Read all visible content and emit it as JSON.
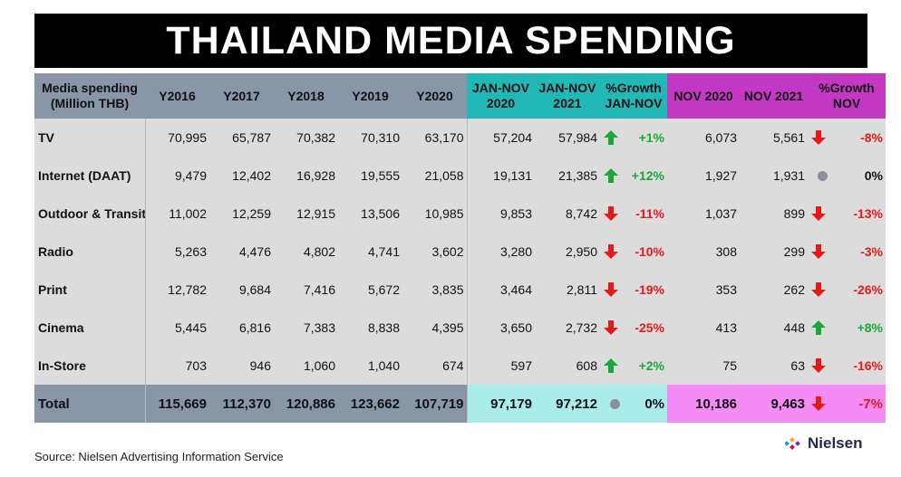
{
  "title": "THAILAND MEDIA SPENDING",
  "header": {
    "label": [
      "Media spending",
      "(Million THB)"
    ],
    "years": [
      "Y2016",
      "Y2017",
      "Y2018",
      "Y2019",
      "Y2020"
    ],
    "jan_nov_2020": [
      "JAN-NOV",
      "2020"
    ],
    "jan_nov_2021": [
      "JAN-NOV",
      "2021"
    ],
    "growth_jan_nov": [
      "%Growth",
      "JAN-NOV"
    ],
    "nov_2020": "NOV 2020",
    "nov_2021": "NOV 2021",
    "growth_nov": [
      "%Growth",
      "NOV"
    ]
  },
  "colors": {
    "title_bg": "#000000",
    "header_gray": "#8996a8",
    "header_teal": "#21b8b5",
    "header_magenta": "#c238c2",
    "row_bg": "#dcdcdc",
    "total_teal": "#aaecec",
    "total_magenta": "#f58cf5",
    "up": "#1aa73a",
    "down": "#e31a1a"
  },
  "rows": [
    {
      "label": "TV",
      "y2016": "70,995",
      "y2017": "65,787",
      "y2018": "70,382",
      "y2019": "70,310",
      "y2020": "63,170",
      "jn2020": "57,204",
      "jn2021": "57,984",
      "g_jn": "+1%",
      "g_jn_dir": "up",
      "n2020": "6,073",
      "n2021": "5,561",
      "g_n": "-8%",
      "g_n_dir": "down"
    },
    {
      "label": "Internet (DAAT)",
      "y2016": "9,479",
      "y2017": "12,402",
      "y2018": "16,928",
      "y2019": "19,555",
      "y2020": "21,058",
      "jn2020": "19,131",
      "jn2021": "21,385",
      "g_jn": "+12%",
      "g_jn_dir": "up",
      "n2020": "1,927",
      "n2021": "1,931",
      "g_n": "0%",
      "g_n_dir": "flat"
    },
    {
      "label": "Outdoor & Transit",
      "y2016": "11,002",
      "y2017": "12,259",
      "y2018": "12,915",
      "y2019": "13,506",
      "y2020": "10,985",
      "jn2020": "9,853",
      "jn2021": "8,742",
      "g_jn": "-11%",
      "g_jn_dir": "down",
      "n2020": "1,037",
      "n2021": "899",
      "g_n": "-13%",
      "g_n_dir": "down"
    },
    {
      "label": "Radio",
      "y2016": "5,263",
      "y2017": "4,476",
      "y2018": "4,802",
      "y2019": "4,741",
      "y2020": "3,602",
      "jn2020": "3,280",
      "jn2021": "2,950",
      "g_jn": "-10%",
      "g_jn_dir": "down",
      "n2020": "308",
      "n2021": "299",
      "g_n": "-3%",
      "g_n_dir": "down"
    },
    {
      "label": "Print",
      "y2016": "12,782",
      "y2017": "9,684",
      "y2018": "7,416",
      "y2019": "5,672",
      "y2020": "3,835",
      "jn2020": "3,464",
      "jn2021": "2,811",
      "g_jn": "-19%",
      "g_jn_dir": "down",
      "n2020": "353",
      "n2021": "262",
      "g_n": "-26%",
      "g_n_dir": "down"
    },
    {
      "label": "Cinema",
      "y2016": "5,445",
      "y2017": "6,816",
      "y2018": "7,383",
      "y2019": "8,838",
      "y2020": "4,395",
      "jn2020": "3,650",
      "jn2021": "2,732",
      "g_jn": "-25%",
      "g_jn_dir": "down",
      "n2020": "413",
      "n2021": "448",
      "g_n": "+8%",
      "g_n_dir": "up"
    },
    {
      "label": "In-Store",
      "y2016": "703",
      "y2017": "946",
      "y2018": "1,060",
      "y2019": "1,040",
      "y2020": "674",
      "jn2020": "597",
      "jn2021": "608",
      "g_jn": "+2%",
      "g_jn_dir": "up",
      "n2020": "75",
      "n2021": "63",
      "g_n": "-16%",
      "g_n_dir": "down"
    }
  ],
  "total": {
    "label": "Total",
    "y2016": "115,669",
    "y2017": "112,370",
    "y2018": "120,886",
    "y2019": "123,662",
    "y2020": "107,719",
    "jn2020": "97,179",
    "jn2021": "97,212",
    "g_jn": "0%",
    "g_jn_dir": "flat",
    "n2020": "10,186",
    "n2021": "9,463",
    "g_n": "-7%",
    "g_n_dir": "down"
  },
  "source": "Source: Nielsen Advertising Information Service",
  "logo_text": "Nielsen",
  "chart_data": {
    "type": "table",
    "title": "THAILAND MEDIA SPENDING",
    "columns": [
      "Media spending (Million THB)",
      "Y2016",
      "Y2017",
      "Y2018",
      "Y2019",
      "Y2020",
      "JAN-NOV 2020",
      "JAN-NOV 2021",
      "%Growth JAN-NOV",
      "NOV 2020",
      "NOV 2021",
      "%Growth NOV"
    ],
    "rows": [
      [
        "TV",
        70995,
        65787,
        70382,
        70310,
        63170,
        57204,
        57984,
        "+1%",
        6073,
        5561,
        "-8%"
      ],
      [
        "Internet (DAAT)",
        9479,
        12402,
        16928,
        19555,
        21058,
        19131,
        21385,
        "+12%",
        1927,
        1931,
        "0%"
      ],
      [
        "Outdoor & Transit",
        11002,
        12259,
        12915,
        13506,
        10985,
        9853,
        8742,
        "-11%",
        1037,
        899,
        "-13%"
      ],
      [
        "Radio",
        5263,
        4476,
        4802,
        4741,
        3602,
        3280,
        2950,
        "-10%",
        308,
        299,
        "-3%"
      ],
      [
        "Print",
        12782,
        9684,
        7416,
        5672,
        3835,
        3464,
        2811,
        "-19%",
        353,
        262,
        "-26%"
      ],
      [
        "Cinema",
        5445,
        6816,
        7383,
        8838,
        4395,
        3650,
        2732,
        "-25%",
        413,
        448,
        "+8%"
      ],
      [
        "In-Store",
        703,
        946,
        1060,
        1040,
        674,
        597,
        608,
        "+2%",
        75,
        63,
        "-16%"
      ],
      [
        "Total",
        115669,
        112370,
        120886,
        123662,
        107719,
        97179,
        97212,
        "0%",
        10186,
        9463,
        "-7%"
      ]
    ]
  }
}
